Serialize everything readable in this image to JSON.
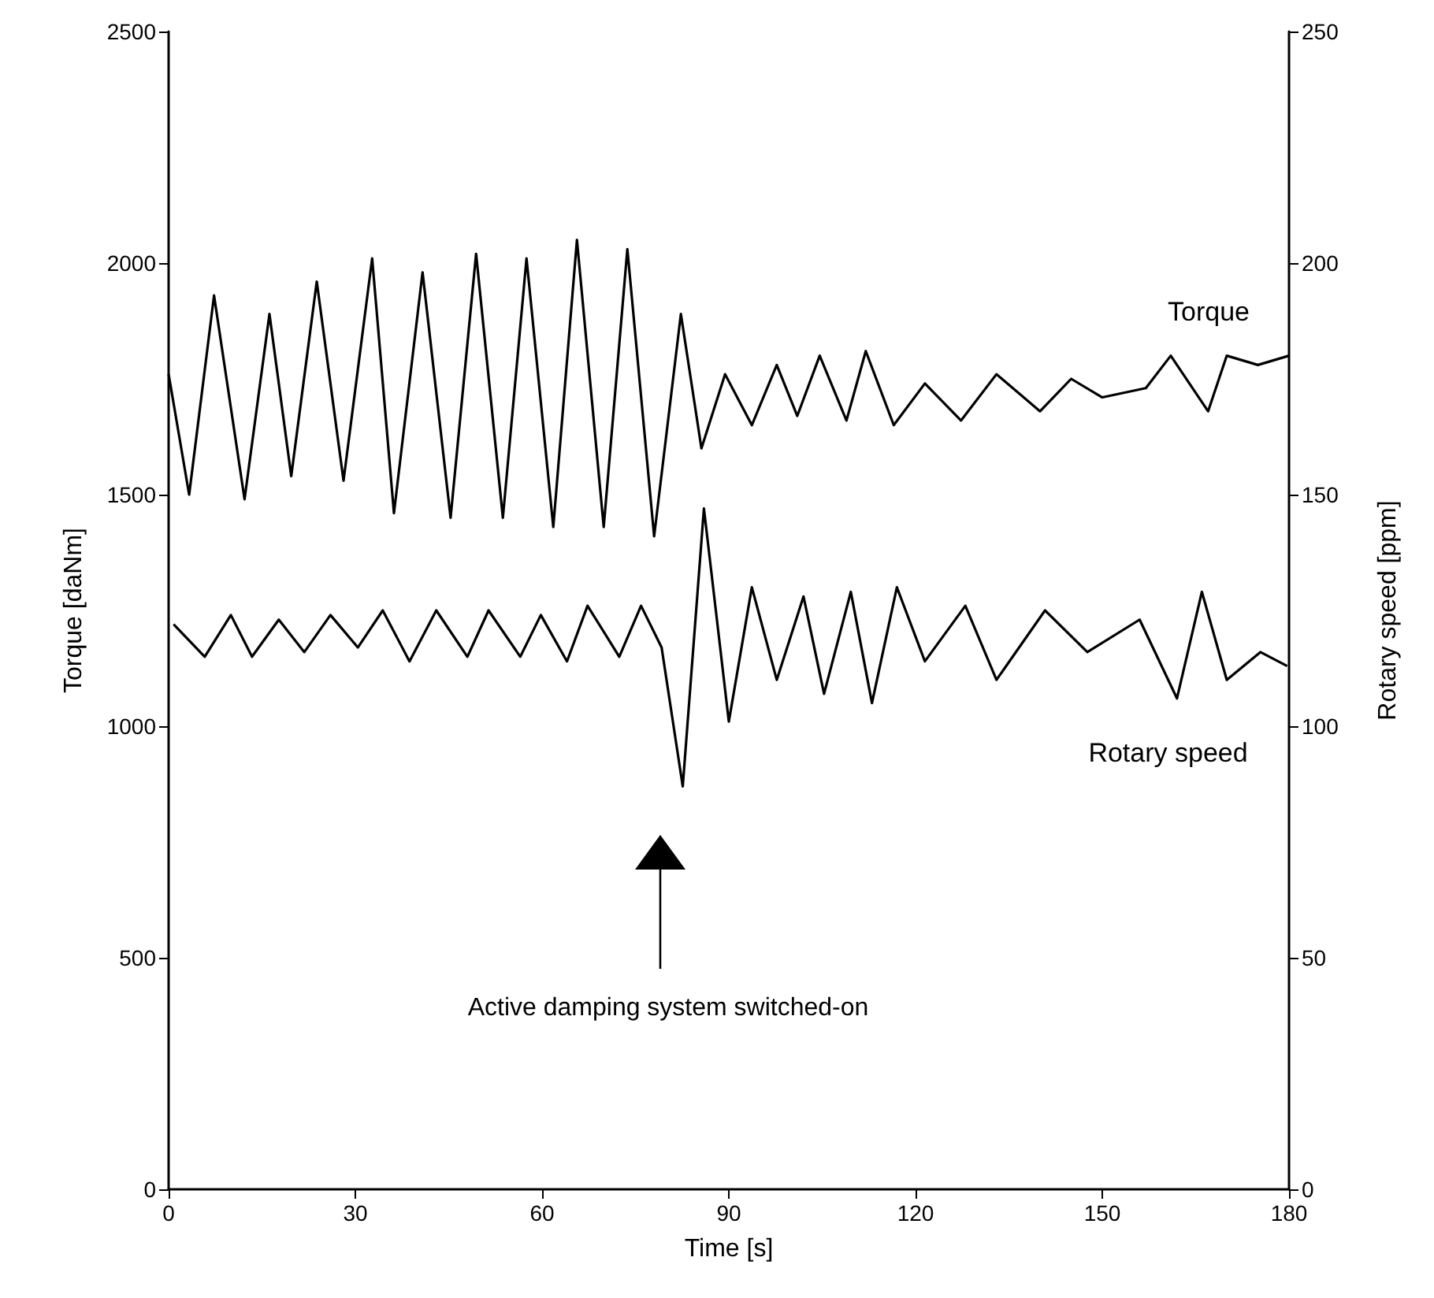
{
  "chart_data": {
    "type": "line",
    "xlabel": "Time [s]",
    "ylabel": "Torque [daNm]",
    "y2label": "Rotary speed [ppm]",
    "xlim": [
      0,
      180
    ],
    "xticks": [
      0,
      30,
      60,
      90,
      120,
      150,
      180
    ],
    "ylim": [
      0,
      2500
    ],
    "yticks": [
      0,
      500,
      1000,
      1500,
      2000,
      2500
    ],
    "y2lim": [
      0,
      250
    ],
    "y2ticks": [
      0,
      50,
      100,
      150,
      200,
      250
    ],
    "grid": false,
    "legend": false,
    "marker": "none",
    "line_style": "solid",
    "annotations": [
      "Active damping system switched-on"
    ],
    "series": [
      {
        "name": "Torque",
        "color": "#000000",
        "x": [
          0,
          3.3,
          7.3,
          12.2,
          16.2,
          19.7,
          23.8,
          28.1,
          32.7,
          36.2,
          40.8,
          45.3,
          49.4,
          53.7,
          57.5,
          61.8,
          65.6,
          69.9,
          73.7,
          78,
          82.3,
          85.6,
          89.4,
          93.7,
          97.7,
          101,
          104.6,
          108.9,
          112,
          116.5,
          121.5,
          127.3,
          133,
          140,
          145,
          150,
          157,
          161,
          167,
          170,
          175,
          180
        ],
        "values": [
          1760,
          1500,
          1930,
          1490,
          1890,
          1540,
          1960,
          1530,
          2010,
          1460,
          1980,
          1450,
          2020,
          1450,
          2010,
          1430,
          2050,
          1430,
          2030,
          1410,
          1890,
          1600,
          1760,
          1650,
          1780,
          1670,
          1800,
          1660,
          1810,
          1650,
          1740,
          1660,
          1760,
          1680,
          1750,
          1710,
          1730,
          1800,
          1680,
          1800,
          1780,
          1800
        ]
      },
      {
        "name": "Rotary speed",
        "color": "#000000",
        "axis": "y2",
        "x": [
          0.8,
          5.8,
          10,
          13.4,
          17.7,
          21.8,
          26,
          30.4,
          34.4,
          38.7,
          43,
          48,
          51.4,
          56.5,
          59.8,
          64,
          67.3,
          72.4,
          75.9,
          79.2,
          82.6,
          86,
          90,
          93.7,
          97.7,
          102,
          105.3,
          109.6,
          113,
          117,
          121.5,
          128,
          133,
          140.8,
          147.6,
          156,
          162,
          166,
          170,
          175.4,
          179.7
        ],
        "values": [
          122,
          115,
          124,
          115,
          123,
          116,
          124,
          117,
          125,
          114,
          125,
          115,
          125,
          115,
          124,
          114,
          126,
          115,
          126,
          117,
          87,
          147,
          101,
          130,
          110,
          128,
          107,
          129,
          105,
          130,
          114,
          126,
          110,
          125,
          116,
          123,
          106,
          129,
          110,
          116,
          113
        ]
      }
    ]
  }
}
